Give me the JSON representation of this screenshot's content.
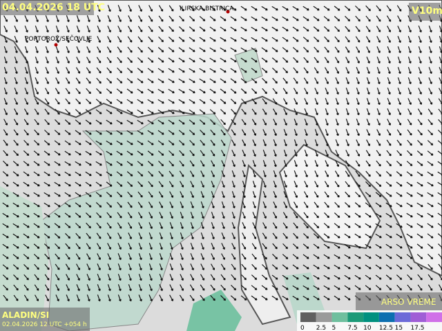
{
  "header": {
    "valid_time": "04.04.2026 18 UTC",
    "parameter": "V10m"
  },
  "places": [
    {
      "label": "ILIRSKA BISTRICA"
    },
    {
      "label": "PORTOROŽ/SEČOVLJE"
    }
  ],
  "footer": {
    "model": "ALADIN/SI",
    "run": "02.04.2026 12 UTC +054 h",
    "brand": "ARSO VREME"
  },
  "legend": {
    "labels": [
      0,
      2.5,
      5,
      7.5,
      10,
      12.5,
      15,
      17.5
    ],
    "colors": [
      "#606060",
      "#9a9a9a",
      "#6fbf9e",
      "#1c9a78",
      "#00907f",
      "#0d6fb0",
      "#6c6ad8",
      "#a05ed6",
      "#d070e8"
    ]
  }
}
